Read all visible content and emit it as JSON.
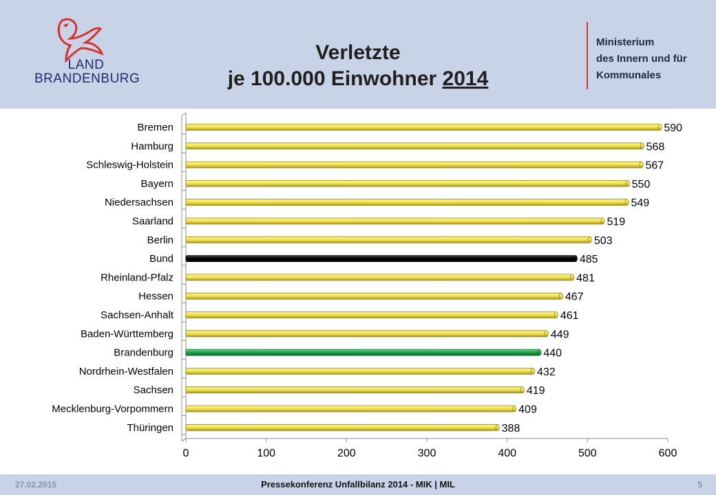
{
  "header": {
    "logo": {
      "line1": "LAND",
      "line2": "BRANDENBURG"
    },
    "title_line1": "Verletzte",
    "title_line2_prefix": "je 100.000 Einwohner",
    "title_line2_year": "2014",
    "ministry_lines": [
      "Ministerium",
      "des Innern und für",
      "Kommunales"
    ]
  },
  "footer": {
    "date": "27.02.2015",
    "center": "Pressekonferenz Unfallbilanz 2014 - MIK | MIL",
    "page": "5"
  },
  "colors": {
    "default_bar": "#f2e34c",
    "highlight_bund": "#000000",
    "highlight_brandenburg": "#1aa348",
    "header_bg": "#c9d3e8",
    "accent_red": "#c0392b"
  },
  "chart_data": {
    "type": "bar",
    "orientation": "horizontal",
    "categories": [
      "Bremen",
      "Hamburg",
      "Schleswig-Holstein",
      "Bayern",
      "Niedersachsen",
      "Saarland",
      "Berlin",
      "Bund",
      "Rheinland-Pfalz",
      "Hessen",
      "Sachsen-Anhalt",
      "Baden-Württemberg",
      "Brandenburg",
      "Nordrhein-Westfalen",
      "Sachsen",
      "Mecklenburg-Vorpommern",
      "Thüringen"
    ],
    "values": [
      590,
      568,
      567,
      550,
      549,
      519,
      503,
      485,
      481,
      467,
      461,
      449,
      440,
      432,
      419,
      409,
      388
    ],
    "highlights": {
      "Bund": "#000000",
      "Brandenburg": "#1aa348"
    },
    "xlim": [
      0,
      600
    ],
    "xticks": [
      0,
      100,
      200,
      300,
      400,
      500,
      600
    ],
    "grid": false,
    "legend": "none"
  }
}
